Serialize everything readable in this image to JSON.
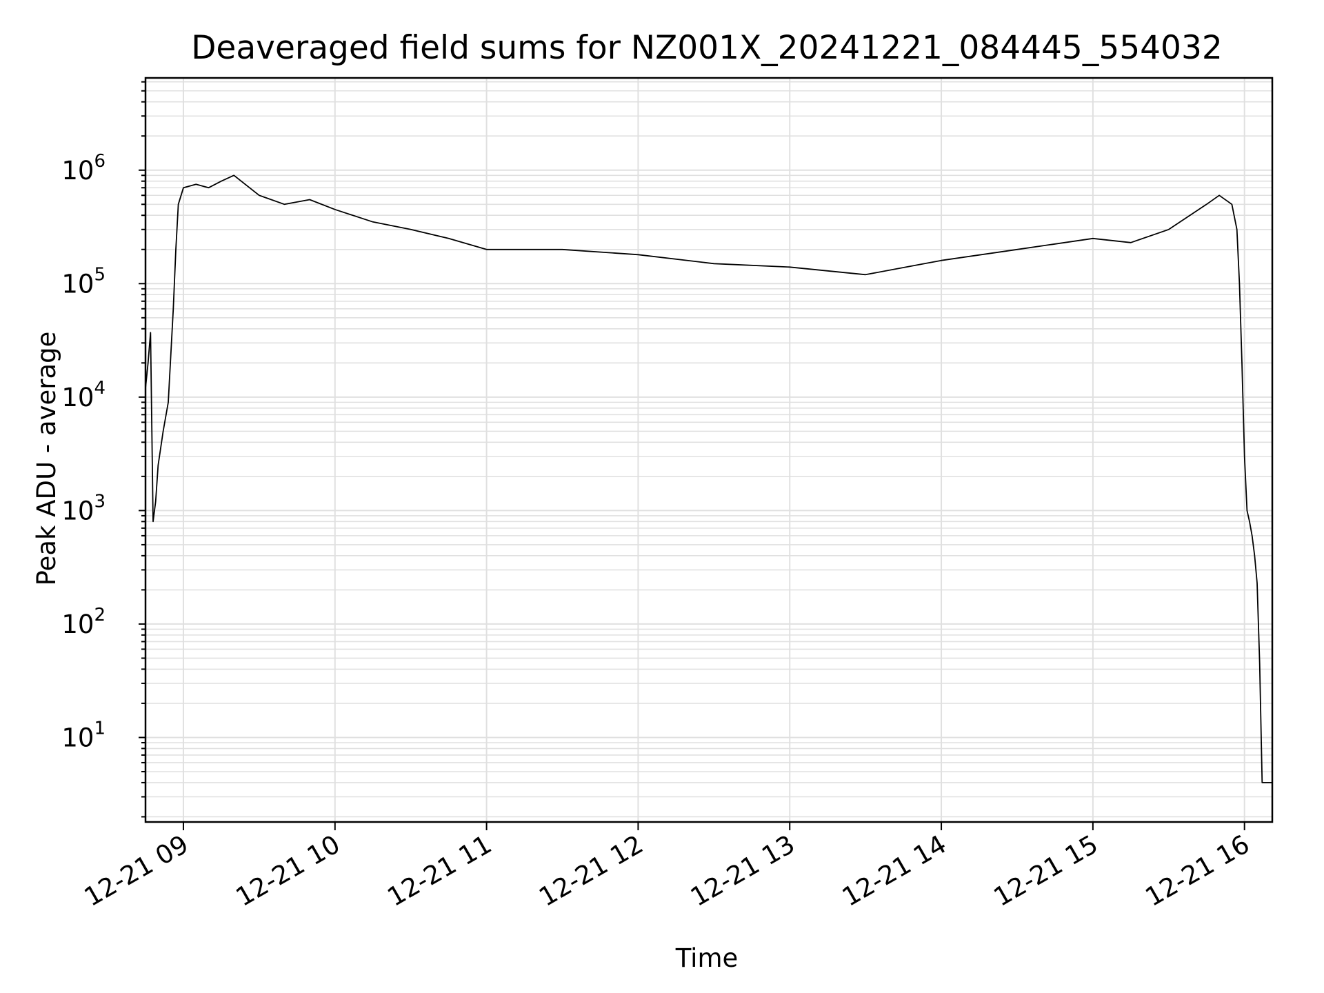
{
  "chart_data": {
    "type": "line",
    "title": "Deaveraged field sums for NZ001X_20241221_084445_554032",
    "xlabel": "Time",
    "ylabel": "Peak ADU - average",
    "x_ticks": [
      "12-21 09",
      "12-21 10",
      "12-21 11",
      "12-21 12",
      "12-21 13",
      "12-21 14",
      "12-21 15",
      "12-21 16"
    ],
    "y_ticks": [
      {
        "base": "10",
        "exp": "1"
      },
      {
        "base": "10",
        "exp": "2"
      },
      {
        "base": "10",
        "exp": "3"
      },
      {
        "base": "10",
        "exp": "4"
      },
      {
        "base": "10",
        "exp": "5"
      },
      {
        "base": "10",
        "exp": "6"
      }
    ],
    "y_scale": "log",
    "xlim": [
      "2024-12-21 08:45",
      "2024-12-21 16:11"
    ],
    "ylim": [
      1.8,
      6500000
    ],
    "grid": true,
    "line_color": "#000000",
    "grid_color": "#e0e0e0",
    "series": [
      {
        "points": [
          [
            "2024-12-21 08:45",
            12000
          ],
          [
            "2024-12-21 08:46",
            20000
          ],
          [
            "2024-12-21 08:47",
            37000
          ],
          [
            "2024-12-21 08:48",
            800
          ],
          [
            "2024-12-21 08:49",
            1200
          ],
          [
            "2024-12-21 08:50",
            2500
          ],
          [
            "2024-12-21 08:52",
            5000
          ],
          [
            "2024-12-21 08:54",
            9000
          ],
          [
            "2024-12-21 08:56",
            60000
          ],
          [
            "2024-12-21 08:57",
            200000
          ],
          [
            "2024-12-21 08:58",
            500000
          ],
          [
            "2024-12-21 09:00",
            700000
          ],
          [
            "2024-12-21 09:05",
            750000
          ],
          [
            "2024-12-21 09:10",
            700000
          ],
          [
            "2024-12-21 09:15",
            800000
          ],
          [
            "2024-12-21 09:20",
            900000
          ],
          [
            "2024-12-21 09:30",
            600000
          ],
          [
            "2024-12-21 09:40",
            500000
          ],
          [
            "2024-12-21 09:50",
            550000
          ],
          [
            "2024-12-21 10:00",
            450000
          ],
          [
            "2024-12-21 10:15",
            350000
          ],
          [
            "2024-12-21 10:30",
            300000
          ],
          [
            "2024-12-21 10:45",
            250000
          ],
          [
            "2024-12-21 11:00",
            200000
          ],
          [
            "2024-12-21 11:30",
            200000
          ],
          [
            "2024-12-21 12:00",
            180000
          ],
          [
            "2024-12-21 12:30",
            150000
          ],
          [
            "2024-12-21 13:00",
            140000
          ],
          [
            "2024-12-21 13:30",
            120000
          ],
          [
            "2024-12-21 14:00",
            160000
          ],
          [
            "2024-12-21 14:30",
            200000
          ],
          [
            "2024-12-21 15:00",
            250000
          ],
          [
            "2024-12-21 15:15",
            230000
          ],
          [
            "2024-12-21 15:30",
            300000
          ],
          [
            "2024-12-21 15:45",
            500000
          ],
          [
            "2024-12-21 15:50",
            600000
          ],
          [
            "2024-12-21 15:55",
            500000
          ],
          [
            "2024-12-21 15:57",
            300000
          ],
          [
            "2024-12-21 15:58",
            100000
          ],
          [
            "2024-12-21 15:59",
            20000
          ],
          [
            "2024-12-21 16:00",
            3000
          ],
          [
            "2024-12-21 16:01",
            1000
          ],
          [
            "2024-12-21 16:02",
            800
          ],
          [
            "2024-12-21 16:03",
            600
          ],
          [
            "2024-12-21 16:04",
            400
          ],
          [
            "2024-12-21 16:05",
            230
          ],
          [
            "2024-12-21 16:06",
            45
          ],
          [
            "2024-12-21 16:07",
            4
          ],
          [
            "2024-12-21 16:11",
            4
          ]
        ]
      }
    ]
  }
}
